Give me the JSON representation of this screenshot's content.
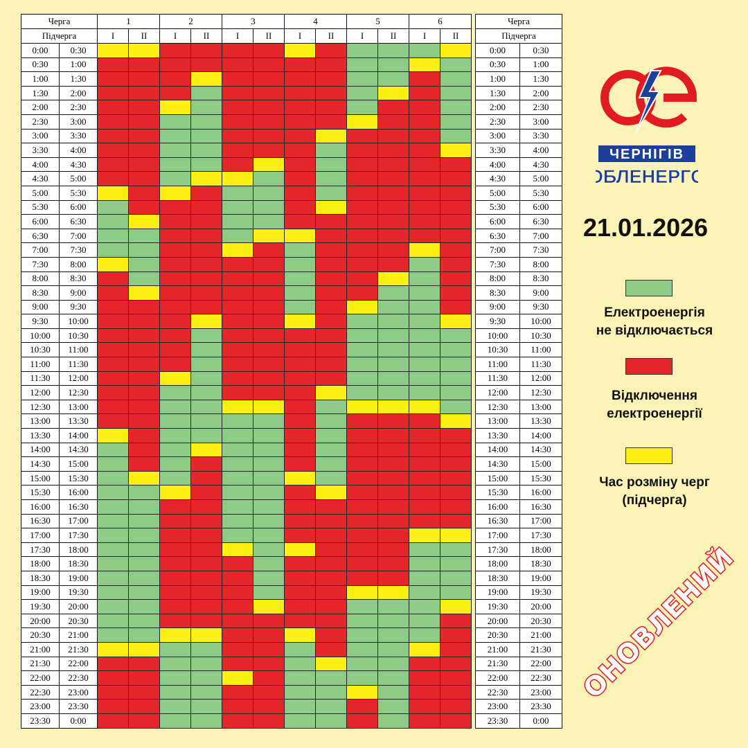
{
  "header": {
    "queue_label": "Черга",
    "subqueue_label": "Підчерга",
    "queues": [
      "1",
      "2",
      "3",
      "4",
      "5",
      "6"
    ],
    "subqueues": [
      "I",
      "II"
    ]
  },
  "times": [
    [
      "0:00",
      "0:30"
    ],
    [
      "0:30",
      "1:00"
    ],
    [
      "1:00",
      "1:30"
    ],
    [
      "1:30",
      "2:00"
    ],
    [
      "2:00",
      "2:30"
    ],
    [
      "2:30",
      "3:00"
    ],
    [
      "3:00",
      "3:30"
    ],
    [
      "3:30",
      "4:00"
    ],
    [
      "4:00",
      "4:30"
    ],
    [
      "4:30",
      "5:00"
    ],
    [
      "5:00",
      "5:30"
    ],
    [
      "5:30",
      "6:00"
    ],
    [
      "6:00",
      "6:30"
    ],
    [
      "6:30",
      "7:00"
    ],
    [
      "7:00",
      "7:30"
    ],
    [
      "7:30",
      "8:00"
    ],
    [
      "8:00",
      "8:30"
    ],
    [
      "8:30",
      "9:00"
    ],
    [
      "9:00",
      "9:30"
    ],
    [
      "9:30",
      "10:00"
    ],
    [
      "10:00",
      "10:30"
    ],
    [
      "10:30",
      "11:00"
    ],
    [
      "11:00",
      "11:30"
    ],
    [
      "11:30",
      "12:00"
    ],
    [
      "12:00",
      "12:30"
    ],
    [
      "12:30",
      "13:00"
    ],
    [
      "13:00",
      "13:30"
    ],
    [
      "13:30",
      "14:00"
    ],
    [
      "14:00",
      "14:30"
    ],
    [
      "14:30",
      "15:00"
    ],
    [
      "15:00",
      "15:30"
    ],
    [
      "15:30",
      "16:00"
    ],
    [
      "16:00",
      "16:30"
    ],
    [
      "16:30",
      "17:00"
    ],
    [
      "17:00",
      "17:30"
    ],
    [
      "17:30",
      "18:00"
    ],
    [
      "18:00",
      "18:30"
    ],
    [
      "18:30",
      "19:00"
    ],
    [
      "19:00",
      "19:30"
    ],
    [
      "19:30",
      "20:00"
    ],
    [
      "20:00",
      "20:30"
    ],
    [
      "20:30",
      "21:00"
    ],
    [
      "21:00",
      "21:30"
    ],
    [
      "21:30",
      "22:00"
    ],
    [
      "22:00",
      "22:30"
    ],
    [
      "22:30",
      "23:00"
    ],
    [
      "23:00",
      "23:30"
    ],
    [
      "23:30",
      "0:00"
    ]
  ],
  "schedule_states": {
    "0": "green",
    "1": "red",
    "2": "yellow"
  },
  "schedule": [
    [
      2,
      2,
      1,
      1,
      1,
      1,
      2,
      1,
      0,
      0,
      0,
      2
    ],
    [
      1,
      1,
      1,
      1,
      1,
      1,
      1,
      1,
      0,
      0,
      2,
      0
    ],
    [
      1,
      1,
      1,
      2,
      1,
      1,
      1,
      1,
      0,
      0,
      1,
      0
    ],
    [
      1,
      1,
      1,
      0,
      1,
      1,
      1,
      1,
      0,
      2,
      1,
      0
    ],
    [
      1,
      1,
      2,
      0,
      1,
      1,
      1,
      1,
      0,
      1,
      1,
      0
    ],
    [
      1,
      1,
      0,
      0,
      1,
      1,
      1,
      1,
      2,
      1,
      1,
      0
    ],
    [
      1,
      1,
      0,
      0,
      1,
      1,
      1,
      2,
      1,
      1,
      1,
      0
    ],
    [
      1,
      1,
      0,
      0,
      1,
      1,
      1,
      0,
      1,
      1,
      1,
      2
    ],
    [
      1,
      1,
      0,
      0,
      1,
      2,
      1,
      0,
      1,
      1,
      1,
      1
    ],
    [
      1,
      1,
      0,
      2,
      2,
      0,
      1,
      0,
      1,
      1,
      1,
      1
    ],
    [
      2,
      1,
      2,
      1,
      0,
      0,
      1,
      0,
      1,
      1,
      1,
      1
    ],
    [
      0,
      1,
      1,
      1,
      0,
      0,
      1,
      2,
      1,
      1,
      1,
      1
    ],
    [
      0,
      2,
      1,
      1,
      0,
      0,
      1,
      1,
      1,
      1,
      1,
      1
    ],
    [
      0,
      0,
      1,
      1,
      0,
      2,
      2,
      1,
      1,
      1,
      1,
      1
    ],
    [
      0,
      0,
      1,
      1,
      2,
      1,
      0,
      1,
      1,
      1,
      2,
      1
    ],
    [
      2,
      0,
      1,
      1,
      1,
      1,
      0,
      1,
      1,
      1,
      0,
      1
    ],
    [
      1,
      0,
      1,
      1,
      1,
      1,
      0,
      1,
      1,
      2,
      0,
      1
    ],
    [
      1,
      2,
      1,
      1,
      1,
      1,
      0,
      1,
      1,
      0,
      0,
      1
    ],
    [
      1,
      1,
      1,
      1,
      1,
      1,
      0,
      1,
      2,
      0,
      0,
      1
    ],
    [
      1,
      1,
      1,
      2,
      1,
      1,
      2,
      1,
      0,
      0,
      0,
      2
    ],
    [
      1,
      1,
      1,
      0,
      1,
      1,
      1,
      1,
      0,
      0,
      0,
      0
    ],
    [
      1,
      1,
      1,
      0,
      1,
      1,
      1,
      1,
      0,
      0,
      0,
      0
    ],
    [
      1,
      1,
      1,
      0,
      1,
      1,
      1,
      1,
      0,
      0,
      0,
      0
    ],
    [
      1,
      1,
      2,
      0,
      1,
      1,
      1,
      1,
      0,
      0,
      0,
      0
    ],
    [
      1,
      1,
      0,
      0,
      1,
      1,
      1,
      2,
      0,
      0,
      0,
      0
    ],
    [
      1,
      1,
      0,
      0,
      2,
      2,
      1,
      0,
      2,
      2,
      2,
      0
    ],
    [
      1,
      1,
      0,
      0,
      0,
      0,
      1,
      0,
      1,
      1,
      1,
      2
    ],
    [
      2,
      1,
      0,
      0,
      0,
      0,
      1,
      0,
      1,
      1,
      1,
      1
    ],
    [
      0,
      1,
      0,
      2,
      0,
      0,
      1,
      0,
      1,
      1,
      1,
      1
    ],
    [
      0,
      1,
      0,
      1,
      0,
      0,
      1,
      0,
      1,
      1,
      1,
      1
    ],
    [
      0,
      2,
      0,
      1,
      0,
      0,
      2,
      0,
      1,
      1,
      1,
      1
    ],
    [
      0,
      0,
      2,
      1,
      0,
      0,
      1,
      2,
      1,
      1,
      1,
      1
    ],
    [
      0,
      0,
      1,
      1,
      0,
      0,
      1,
      1,
      1,
      1,
      1,
      1
    ],
    [
      0,
      0,
      1,
      1,
      0,
      0,
      1,
      1,
      1,
      1,
      1,
      1
    ],
    [
      0,
      0,
      1,
      1,
      0,
      0,
      1,
      1,
      1,
      1,
      2,
      2
    ],
    [
      0,
      0,
      1,
      1,
      2,
      0,
      2,
      1,
      1,
      1,
      0,
      0
    ],
    [
      0,
      0,
      1,
      1,
      1,
      0,
      1,
      1,
      1,
      1,
      0,
      0
    ],
    [
      0,
      0,
      1,
      1,
      1,
      0,
      1,
      1,
      1,
      1,
      0,
      0
    ],
    [
      0,
      0,
      1,
      1,
      1,
      0,
      1,
      1,
      2,
      2,
      0,
      0
    ],
    [
      0,
      0,
      1,
      1,
      1,
      2,
      1,
      1,
      0,
      0,
      0,
      2
    ],
    [
      0,
      0,
      1,
      1,
      1,
      1,
      1,
      1,
      0,
      0,
      0,
      1
    ],
    [
      0,
      0,
      2,
      2,
      1,
      1,
      2,
      1,
      0,
      0,
      0,
      1
    ],
    [
      2,
      2,
      0,
      0,
      1,
      1,
      0,
      1,
      0,
      0,
      2,
      1
    ],
    [
      1,
      1,
      0,
      0,
      1,
      1,
      0,
      2,
      0,
      0,
      1,
      1
    ],
    [
      1,
      1,
      0,
      0,
      2,
      1,
      0,
      0,
      0,
      0,
      1,
      1
    ],
    [
      1,
      1,
      0,
      0,
      1,
      1,
      0,
      0,
      2,
      0,
      1,
      1
    ],
    [
      1,
      1,
      0,
      0,
      1,
      1,
      0,
      0,
      1,
      0,
      1,
      1
    ],
    [
      1,
      1,
      0,
      0,
      1,
      1,
      0,
      0,
      1,
      0,
      1,
      1
    ]
  ],
  "logo": {
    "line1": "ЧЕРНІГІВ",
    "line2": "ОБЛЕНЕРГО",
    "brand_red": "#e01b22",
    "brand_blue": "#1b3f9a"
  },
  "date": "21.01.2026",
  "legend": [
    {
      "color": "#8ecb86",
      "text_lines": [
        "Електроенергія",
        "не відключається"
      ]
    },
    {
      "color": "#e5262a",
      "text_lines": [
        "Відключення",
        "електроенергії"
      ]
    },
    {
      "color": "#fbf012",
      "text_lines": [
        "Час розміну черг",
        "(підчерга)"
      ]
    }
  ],
  "stamp": "ОНОВЛЕНИЙ"
}
